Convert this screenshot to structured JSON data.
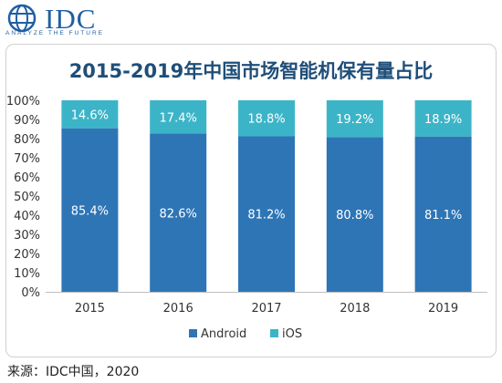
{
  "logo": {
    "text": "IDC",
    "tagline": "ANALYZE THE FUTURE"
  },
  "chart_data": {
    "type": "bar",
    "stacked": true,
    "title": "2015-2019年中国市场智能机保有量占比",
    "categories": [
      "2015",
      "2016",
      "2017",
      "2018",
      "2019"
    ],
    "series": [
      {
        "name": "Android",
        "values": [
          85.4,
          82.6,
          81.2,
          80.8,
          81.1
        ],
        "labels": [
          "85.4%",
          "82.6%",
          "81.2%",
          "80.8%",
          "81.1%"
        ],
        "color": "#2e75b6"
      },
      {
        "name": "iOS",
        "values": [
          14.6,
          17.4,
          18.8,
          19.2,
          18.9
        ],
        "labels": [
          "14.6%",
          "17.4%",
          "18.8%",
          "19.2%",
          "18.9%"
        ],
        "color": "#3cb4c8"
      }
    ],
    "y_ticks": [
      "0%",
      "10%",
      "20%",
      "30%",
      "40%",
      "50%",
      "60%",
      "70%",
      "80%",
      "90%",
      "100%"
    ],
    "ylim": [
      0,
      100
    ],
    "grid": false,
    "legend_position": "bottom"
  },
  "source": "来源：IDC中国，2020"
}
